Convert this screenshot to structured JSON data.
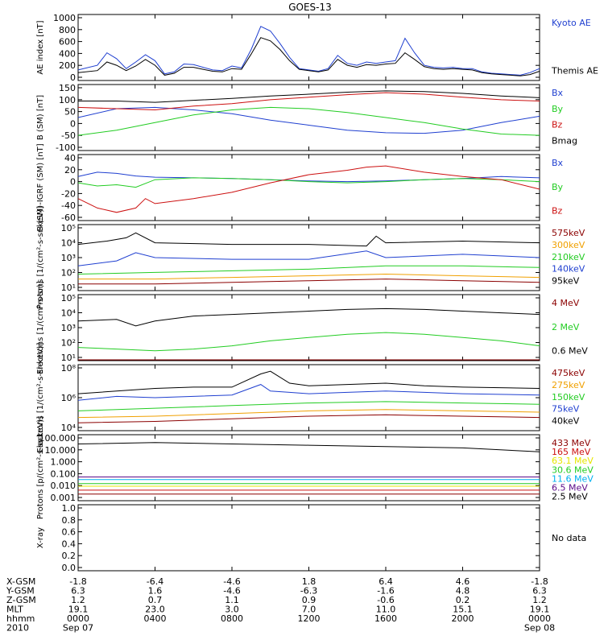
{
  "title": "GOES-13",
  "colors": {
    "blue": "#1f3fd0",
    "black": "#000000",
    "red": "#cc1010",
    "green": "#22cc22",
    "orange": "#f0a000",
    "darkred": "#8b0000",
    "cyan": "#00b0f0",
    "yellow": "#e6e600",
    "purple": "#5a0a8a"
  },
  "chart_data": [
    {
      "id": "ae",
      "type": "line",
      "ylabel": "AE index [nT]",
      "yticks": [
        "1000",
        "800",
        "600",
        "400",
        "200",
        "0"
      ],
      "ylim": [
        0,
        1000
      ],
      "scale": "linear",
      "series": [
        {
          "name": "Kyoto AE",
          "color": "blue",
          "x": [
            0,
            1,
            1.5,
            2,
            2.5,
            3,
            3.5,
            4,
            4.5,
            5,
            5.5,
            6,
            6.5,
            7,
            7.5,
            8,
            8.5,
            9,
            9.5,
            10,
            10.5,
            11,
            11.5,
            12,
            12.5,
            13,
            13.5,
            14,
            14.5,
            15,
            15.5,
            16,
            16.5,
            17,
            17.5,
            18,
            18.5,
            19,
            19.5,
            20,
            20.5,
            21,
            21.5,
            22,
            22.5,
            23,
            23.5,
            24
          ],
          "values": [
            160,
            230,
            420,
            330,
            180,
            280,
            390,
            300,
            100,
            130,
            250,
            240,
            200,
            160,
            150,
            220,
            190,
            470,
            820,
            750,
            560,
            350,
            180,
            160,
            140,
            180,
            380,
            260,
            230,
            280,
            260,
            280,
            300,
            640,
            420,
            230,
            200,
            190,
            200,
            180,
            180,
            130,
            110,
            100,
            90,
            80,
            120,
            180
          ]
        },
        {
          "name": "Themis AE",
          "color": "black",
          "x": [
            0,
            1,
            1.5,
            2,
            2.5,
            3,
            3.5,
            4,
            4.5,
            5,
            5.5,
            6,
            6.5,
            7,
            7.5,
            8,
            8.5,
            9,
            9.5,
            10,
            10.5,
            11,
            11.5,
            12,
            12.5,
            13,
            13.5,
            14,
            14.5,
            15,
            15.5,
            16,
            16.5,
            17,
            17.5,
            18,
            18.5,
            19,
            19.5,
            20,
            20.5,
            21,
            21.5,
            22,
            22.5,
            23,
            23.5,
            24
          ],
          "values": [
            120,
            150,
            280,
            230,
            150,
            220,
            320,
            230,
            80,
            110,
            200,
            200,
            170,
            140,
            130,
            180,
            170,
            400,
            650,
            600,
            470,
            300,
            170,
            150,
            130,
            160,
            320,
            230,
            200,
            240,
            230,
            250,
            260,
            420,
            320,
            210,
            180,
            170,
            180,
            170,
            160,
            120,
            100,
            90,
            80,
            70,
            90,
            140
          ]
        }
      ]
    },
    {
      "id": "bsm",
      "type": "line",
      "ylabel": "B (SM) [nT]",
      "yticks": [
        "150",
        "100",
        "50",
        "0",
        "-50",
        "-100"
      ],
      "ylim": [
        -110,
        150
      ],
      "scale": "linear",
      "series": [
        {
          "name": "Bx",
          "color": "blue",
          "x": [
            0,
            2,
            4,
            6,
            8,
            10,
            12,
            14,
            16,
            18,
            20,
            22,
            24
          ],
          "values": [
            20,
            55,
            60,
            50,
            35,
            10,
            -10,
            -30,
            -40,
            -42,
            -30,
            0,
            25
          ]
        },
        {
          "name": "By",
          "color": "green",
          "x": [
            0,
            2,
            4,
            6,
            8,
            10,
            12,
            14,
            16,
            18,
            20,
            22,
            24
          ],
          "values": [
            -50,
            -30,
            0,
            30,
            50,
            60,
            55,
            40,
            20,
            0,
            -25,
            -45,
            -50
          ]
        },
        {
          "name": "Bz",
          "color": "red",
          "x": [
            0,
            2,
            4,
            6,
            8,
            10,
            12,
            14,
            16,
            18,
            20,
            22,
            24
          ],
          "values": [
            60,
            55,
            50,
            65,
            75,
            90,
            100,
            110,
            118,
            112,
            100,
            90,
            85
          ]
        },
        {
          "name": "Bmag",
          "color": "black",
          "x": [
            0,
            2,
            4,
            6,
            8,
            10,
            12,
            14,
            16,
            18,
            20,
            22,
            24
          ],
          "values": [
            85,
            85,
            80,
            88,
            95,
            105,
            112,
            120,
            125,
            122,
            115,
            105,
            98
          ]
        }
      ]
    },
    {
      "id": "bigrf",
      "type": "line",
      "ylabel": "B (SM)-IGRF (SM) [nT]",
      "yticks": [
        "40",
        "20",
        "0",
        "-20",
        "-40",
        "-60"
      ],
      "ylim": [
        -65,
        40
      ],
      "scale": "linear",
      "series": [
        {
          "name": "Bx",
          "color": "blue",
          "x": [
            0,
            1,
            2,
            3,
            4,
            6,
            8,
            10,
            12,
            14,
            16,
            18,
            20,
            22,
            24
          ],
          "values": [
            5,
            12,
            10,
            6,
            4,
            3,
            2,
            0,
            -2,
            -3,
            -2,
            0,
            2,
            5,
            3
          ]
        },
        {
          "name": "By",
          "color": "green",
          "x": [
            0,
            1,
            2,
            3,
            4,
            6,
            8,
            10,
            12,
            14,
            16,
            18,
            20,
            22,
            24
          ],
          "values": [
            -5,
            -10,
            -8,
            -12,
            0,
            3,
            2,
            0,
            -3,
            -5,
            -3,
            0,
            2,
            0,
            -3
          ]
        },
        {
          "name": "Bz",
          "color": "red",
          "x": [
            0,
            1,
            2,
            3,
            3.5,
            4,
            6,
            8,
            10,
            12,
            14,
            15,
            16,
            18,
            20,
            22,
            24
          ],
          "values": [
            -30,
            -45,
            -52,
            -45,
            -30,
            -38,
            -30,
            -20,
            -5,
            8,
            15,
            20,
            22,
            12,
            5,
            0,
            -15
          ]
        }
      ]
    },
    {
      "id": "protons",
      "type": "line",
      "ylabel": "Protons [1/(cm²-s-sr-keV)]",
      "yticks": [
        "10⁵",
        "10⁴",
        "10³",
        "10²",
        "10¹"
      ],
      "ylim": [
        1,
        5
      ],
      "scale": "log10",
      "series": [
        {
          "name": "575keV",
          "color": "darkred",
          "x": [
            0,
            4,
            8,
            12,
            16,
            20,
            24
          ],
          "values": [
            1.4,
            1.4,
            1.5,
            1.6,
            1.7,
            1.6,
            1.5
          ]
        },
        {
          "name": "300keV",
          "color": "orange",
          "x": [
            0,
            4,
            8,
            12,
            16,
            20,
            24
          ],
          "values": [
            1.7,
            1.7,
            1.8,
            1.9,
            2.0,
            1.9,
            1.8
          ]
        },
        {
          "name": "210keV",
          "color": "green",
          "x": [
            0,
            4,
            8,
            12,
            16,
            20,
            24
          ],
          "values": [
            2.0,
            2.1,
            2.2,
            2.3,
            2.5,
            2.5,
            2.4
          ]
        },
        {
          "name": "140keV",
          "color": "blue",
          "x": [
            0,
            2,
            3,
            4,
            8,
            12,
            15,
            16,
            20,
            24
          ],
          "values": [
            2.5,
            2.8,
            3.3,
            3.0,
            2.9,
            2.9,
            3.4,
            3.0,
            3.2,
            3.0
          ]
        },
        {
          "name": "95keV",
          "color": "black",
          "x": [
            0,
            1.5,
            2.5,
            3,
            4,
            8,
            12,
            15,
            15.5,
            16,
            20,
            24
          ],
          "values": [
            3.8,
            4.0,
            4.2,
            4.5,
            3.9,
            3.8,
            3.8,
            3.7,
            4.3,
            3.9,
            4.0,
            3.9
          ]
        }
      ]
    },
    {
      "id": "electrons_mev",
      "type": "line",
      "ylabel": "Electrons [1/(cm²-s-sr)]",
      "yticks": [
        "10⁵",
        "10⁴",
        "10³",
        "10²",
        "10¹"
      ],
      "ylim": [
        1,
        5
      ],
      "scale": "log10",
      "series": [
        {
          "name": "4 MeV",
          "color": "darkred",
          "x": [
            0,
            12,
            24
          ],
          "values": [
            1.05,
            1.05,
            1.05
          ]
        },
        {
          "name": "2 MeV",
          "color": "green",
          "x": [
            0,
            2,
            4,
            6,
            8,
            10,
            12,
            14,
            16,
            18,
            20,
            22,
            24
          ],
          "values": [
            1.8,
            1.7,
            1.6,
            1.7,
            1.9,
            2.2,
            2.4,
            2.6,
            2.7,
            2.6,
            2.4,
            2.2,
            1.9
          ]
        },
        {
          "name": "0.6 MeV",
          "color": "black",
          "x": [
            0,
            2,
            3,
            4,
            6,
            8,
            10,
            12,
            14,
            16,
            18,
            20,
            22,
            24
          ],
          "values": [
            3.4,
            3.5,
            3.1,
            3.4,
            3.7,
            3.8,
            3.9,
            4.0,
            4.1,
            4.15,
            4.1,
            4.0,
            3.9,
            3.8
          ]
        }
      ]
    },
    {
      "id": "electrons_kev",
      "type": "line",
      "ylabel": "Electrons [1/(cm²-s-sr-keV)]",
      "yticks": [
        "10⁸",
        "10⁶",
        "10⁴"
      ],
      "ylim": [
        3,
        8
      ],
      "scale": "log10",
      "series": [
        {
          "name": "475keV",
          "color": "darkred",
          "x": [
            0,
            4,
            8,
            12,
            16,
            20,
            24
          ],
          "values": [
            3.6,
            3.7,
            3.9,
            4.1,
            4.2,
            4.1,
            4.0
          ]
        },
        {
          "name": "275keV",
          "color": "orange",
          "x": [
            0,
            4,
            8,
            12,
            16,
            20,
            24
          ],
          "values": [
            4.0,
            4.1,
            4.3,
            4.5,
            4.6,
            4.5,
            4.4
          ]
        },
        {
          "name": "150keV",
          "color": "green",
          "x": [
            0,
            4,
            8,
            12,
            16,
            20,
            24
          ],
          "values": [
            4.5,
            4.7,
            4.9,
            5.1,
            5.2,
            5.1,
            5.0
          ]
        },
        {
          "name": "75keV",
          "color": "blue",
          "x": [
            0,
            2,
            4,
            6,
            8,
            9.5,
            10,
            11,
            12,
            14,
            16,
            18,
            20,
            24
          ],
          "values": [
            5.3,
            5.6,
            5.5,
            5.6,
            5.7,
            6.5,
            6.0,
            5.9,
            5.8,
            5.9,
            6.0,
            5.9,
            5.8,
            5.7
          ]
        },
        {
          "name": "40keV",
          "color": "black",
          "x": [
            0,
            2,
            4,
            6,
            8,
            9.5,
            10,
            11,
            12,
            14,
            16,
            18,
            20,
            24
          ],
          "values": [
            5.8,
            6.0,
            6.2,
            6.3,
            6.3,
            7.3,
            7.5,
            6.6,
            6.4,
            6.5,
            6.6,
            6.4,
            6.3,
            6.2
          ]
        }
      ]
    },
    {
      "id": "protons_mev",
      "type": "line",
      "ylabel": "Protons [p/(cm²-s-sr-keV)]",
      "yticks": [
        "100.000",
        "10.000",
        "1.000",
        "0.100",
        "0.010",
        "0.001"
      ],
      "ylim": [
        -3,
        2
      ],
      "scale": "log10",
      "series": [
        {
          "name": "433 MeV",
          "color": "darkred",
          "x": [
            0,
            24
          ],
          "values": [
            -2.5,
            -2.5
          ]
        },
        {
          "name": "165 MeV",
          "color": "red",
          "x": [
            0,
            24
          ],
          "values": [
            -2.2,
            -2.2
          ]
        },
        {
          "name": "63.1 MeV",
          "color": "yellow",
          "x": [
            0,
            24
          ],
          "values": [
            -1.9,
            -1.9
          ]
        },
        {
          "name": "30.6 MeV",
          "color": "green",
          "x": [
            0,
            24
          ],
          "values": [
            -1.7,
            -1.7
          ]
        },
        {
          "name": "11.6 MeV",
          "color": "cyan",
          "x": [
            0,
            24
          ],
          "values": [
            -1.4,
            -1.4
          ]
        },
        {
          "name": "6.5 MeV",
          "color": "purple",
          "x": [
            0,
            24
          ],
          "values": [
            -1.2,
            -1.2
          ]
        },
        {
          "name": "2.5 MeV",
          "color": "black",
          "x": [
            0,
            4,
            8,
            12,
            16,
            20,
            24
          ],
          "values": [
            1.3,
            1.4,
            1.3,
            1.2,
            1.1,
            1.0,
            0.7
          ]
        }
      ]
    },
    {
      "id": "xray",
      "type": "line",
      "ylabel": "X-ray",
      "yticks": [
        "1.0",
        "0.8",
        "0.6",
        "0.4",
        "0.2",
        "0.0"
      ],
      "ylim": [
        0,
        1
      ],
      "scale": "linear",
      "note": "No data",
      "series": []
    }
  ],
  "xaxis": {
    "rows": [
      {
        "label": "X-GSM",
        "values": [
          "-1.8",
          "-6.4",
          "-4.6",
          "1.8",
          "6.4",
          "4.6",
          "-1.8"
        ]
      },
      {
        "label": "Y-GSM",
        "values": [
          "6.3",
          "1.6",
          "-4.6",
          "-6.3",
          "-1.6",
          "4.8",
          "6.3"
        ]
      },
      {
        "label": "Z-GSM",
        "values": [
          "1.2",
          "0.7",
          "1.1",
          "0.9",
          "-0.6",
          "0.2",
          "1.2"
        ]
      },
      {
        "label": "MLT",
        "values": [
          "19.1",
          "23.0",
          "3.0",
          "7.0",
          "11.0",
          "15.1",
          "19.1"
        ]
      },
      {
        "label": "hhmm",
        "values": [
          "0000",
          "0400",
          "0800",
          "1200",
          "1600",
          "2000",
          "0000"
        ]
      },
      {
        "label": "2010",
        "values": [
          "Sep 07",
          "",
          "",
          "",
          "",
          "",
          "Sep 08"
        ]
      }
    ]
  }
}
